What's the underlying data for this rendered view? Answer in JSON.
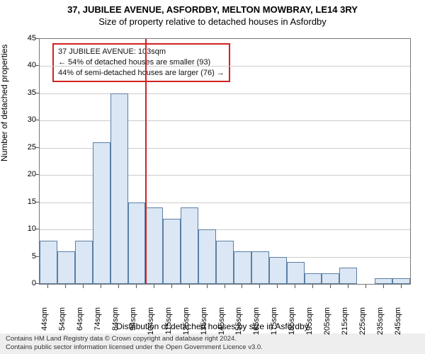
{
  "title": "37, JUBILEE AVENUE, ASFORDBY, MELTON MOWBRAY, LE14 3RY",
  "subtitle": "Size of property relative to detached houses in Asfordby",
  "chart": {
    "type": "histogram",
    "xlabels": [
      "44sqm",
      "54sqm",
      "64sqm",
      "74sqm",
      "84sqm",
      "94sqm",
      "104sqm",
      "115sqm",
      "125sqm",
      "135sqm",
      "145sqm",
      "155sqm",
      "165sqm",
      "175sqm",
      "185sqm",
      "195sqm",
      "205sqm",
      "215sqm",
      "225sqm",
      "235sqm",
      "245sqm"
    ],
    "values": [
      8,
      6,
      8,
      26,
      35,
      15,
      14,
      12,
      14,
      10,
      8,
      6,
      6,
      5,
      4,
      2,
      2,
      3,
      0,
      1,
      1
    ],
    "bar_fill": "#dbe7f4",
    "bar_stroke": "#5b7fa6",
    "ylim": [
      0,
      45
    ],
    "ytick_step": 5,
    "grid_color": "#cccccc",
    "border_color": "#777777",
    "background_color": "#ffffff",
    "ylabel": "Number of detached properties",
    "xlabel": "Distribution of detached houses by size in Asfordby",
    "reference": {
      "index_after": 6,
      "color": "#d22222",
      "box_lines": [
        "37 JUBILEE AVENUE: 103sqm",
        "← 54% of detached houses are smaller (93)",
        "44% of semi-detached houses are larger (76) →"
      ]
    },
    "label_fontsize": 12,
    "tick_fontsize": 11,
    "title_fontsize": 13
  },
  "footer": {
    "line1": "Contains HM Land Registry data © Crown copyright and database right 2024.",
    "line2": "Contains public sector information licensed under the Open Government Licence v3.0."
  }
}
